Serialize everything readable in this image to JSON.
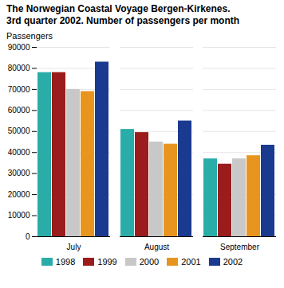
{
  "chart_data": {
    "type": "bar",
    "title": "The Norwegian Coastal Voyage Bergen-Kirkenes.",
    "subtitle": "3rd quarter 2002. Number of passengers per month",
    "ylabel": "Passengers",
    "categories": [
      "July",
      "August",
      "September"
    ],
    "series": [
      {
        "name": "1998",
        "color": "#2aada8",
        "values": [
          78000,
          51000,
          37000
        ]
      },
      {
        "name": "1999",
        "color": "#9b1c1c",
        "values": [
          78000,
          49500,
          34500
        ]
      },
      {
        "name": "2000",
        "color": "#c8c8c8",
        "values": [
          70000,
          45000,
          37000
        ]
      },
      {
        "name": "2001",
        "color": "#e89520",
        "values": [
          69000,
          44000,
          38500
        ]
      },
      {
        "name": "2002",
        "color": "#1a3a8f",
        "values": [
          83000,
          55000,
          43500
        ]
      }
    ],
    "ylim": [
      0,
      90000
    ],
    "yticks": [
      0,
      10000,
      20000,
      30000,
      40000,
      50000,
      60000,
      70000,
      80000,
      90000
    ],
    "grid": true,
    "legend": "bottom"
  }
}
